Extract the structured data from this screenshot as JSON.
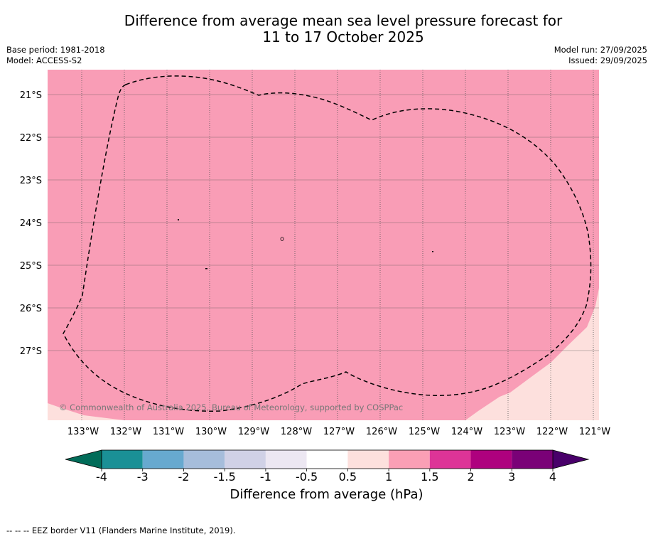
{
  "title": {
    "line1": "Difference from average mean sea level pressure forecast for",
    "line2": "11 to 17 October 2025"
  },
  "header_left": {
    "base_period": "Base period: 1981-2018",
    "model": "Model: ACCESS-S2"
  },
  "header_right": {
    "model_run": "Model run: 27/09/2025",
    "issued": "Issued: 29/09/2025"
  },
  "map": {
    "lon_labels": [
      "133°W",
      "132°W",
      "131°W",
      "130°W",
      "129°W",
      "128°W",
      "127°W",
      "126°W",
      "125°W",
      "124°W",
      "123°W",
      "122°W",
      "121°W"
    ],
    "lat_labels": [
      "21°S",
      "22°S",
      "23°S",
      "24°S",
      "25°S",
      "26°S",
      "27°S"
    ],
    "copyright": "© Commonwealth of Australia 2025, Bureau of Meteorology, supported by COSPPac",
    "colors": {
      "main_fill": "#f99db6",
      "light_fill": "#fde0dd",
      "grid": "#555555"
    }
  },
  "colorbar": {
    "ticks": [
      "-4",
      "-3",
      "-2",
      "-1.5",
      "-1",
      "-0.5",
      "0.5",
      "1",
      "1.5",
      "2",
      "3",
      "4"
    ],
    "colors": [
      "#1a9096",
      "#67a9cf",
      "#a6bddb",
      "#d0d1e6",
      "#ece7f2",
      "#ffffff",
      "#fde0dd",
      "#fa9fb5",
      "#dd3497",
      "#ae017e",
      "#7a0177"
    ],
    "under_color": "#016c59",
    "over_color": "#49006a",
    "label": "Difference from average (hPa)"
  },
  "footer": {
    "legend": "--  --  -- EEZ border V11 (Flanders Marine Institute, 2019)."
  }
}
